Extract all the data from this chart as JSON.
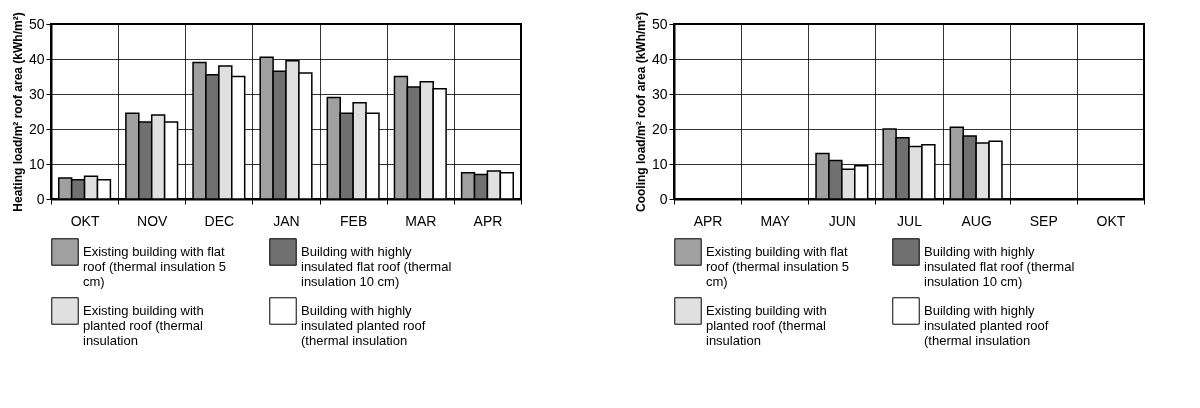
{
  "chart_data": [
    {
      "type": "bar",
      "ylabel": "Heating load/m² roof area (kWh/m²)",
      "categories": [
        "OKT",
        "NOV",
        "DEC",
        "JAN",
        "FEB",
        "MAR",
        "APR"
      ],
      "ylim": [
        0,
        50
      ],
      "yticks": [
        0,
        10,
        20,
        30,
        40,
        50
      ],
      "grid": true,
      "legend": "bottom",
      "series": [
        {
          "name": "Existing building with flat roof (thermal insulation 5 cm)",
          "color": "#a0a0a0",
          "values": [
            6,
            24.5,
            39,
            40.5,
            29,
            35,
            7.5
          ]
        },
        {
          "name": "Building with highly insulated flat roof (thermal insulation 10 cm)",
          "color": "#707070",
          "values": [
            5.5,
            22,
            35.5,
            36.5,
            24.5,
            32,
            7
          ]
        },
        {
          "name": "Existing building with planted roof (thermal insulation",
          "color": "#e0e0e0",
          "values": [
            6.5,
            24,
            38,
            39.5,
            27.5,
            33.5,
            8
          ]
        },
        {
          "name": "Building with highly insulated planted roof (thermal insulation",
          "color": "#ffffff",
          "values": [
            5.5,
            22,
            35,
            36,
            24.5,
            31.5,
            7.5
          ]
        }
      ]
    },
    {
      "type": "bar",
      "ylabel": "Cooling load/m² roof area (kWh/m²)",
      "categories": [
        "APR",
        "MAY",
        "JUN",
        "JUL",
        "AUG",
        "SEP",
        "OKT"
      ],
      "ylim": [
        0,
        50
      ],
      "yticks": [
        0,
        10,
        20,
        30,
        40,
        50
      ],
      "grid": true,
      "legend": "bottom",
      "series": [
        {
          "name": "Existing building with flat roof (thermal insulation 5 cm)",
          "color": "#a0a0a0",
          "values": [
            null,
            null,
            13,
            20,
            20.5,
            null,
            null
          ]
        },
        {
          "name": "Building with highly insulated flat roof (thermal insulation 10 cm)",
          "color": "#707070",
          "values": [
            null,
            null,
            11,
            17.5,
            18,
            null,
            null
          ]
        },
        {
          "name": "Existing building with planted roof (thermal insulation",
          "color": "#e0e0e0",
          "values": [
            null,
            null,
            8.5,
            15,
            16,
            null,
            null
          ]
        },
        {
          "name": "Building with highly insulated planted roof (thermal insulation",
          "color": "#ffffff",
          "values": [
            null,
            null,
            9.5,
            15.5,
            16.5,
            null,
            null
          ]
        }
      ]
    }
  ]
}
